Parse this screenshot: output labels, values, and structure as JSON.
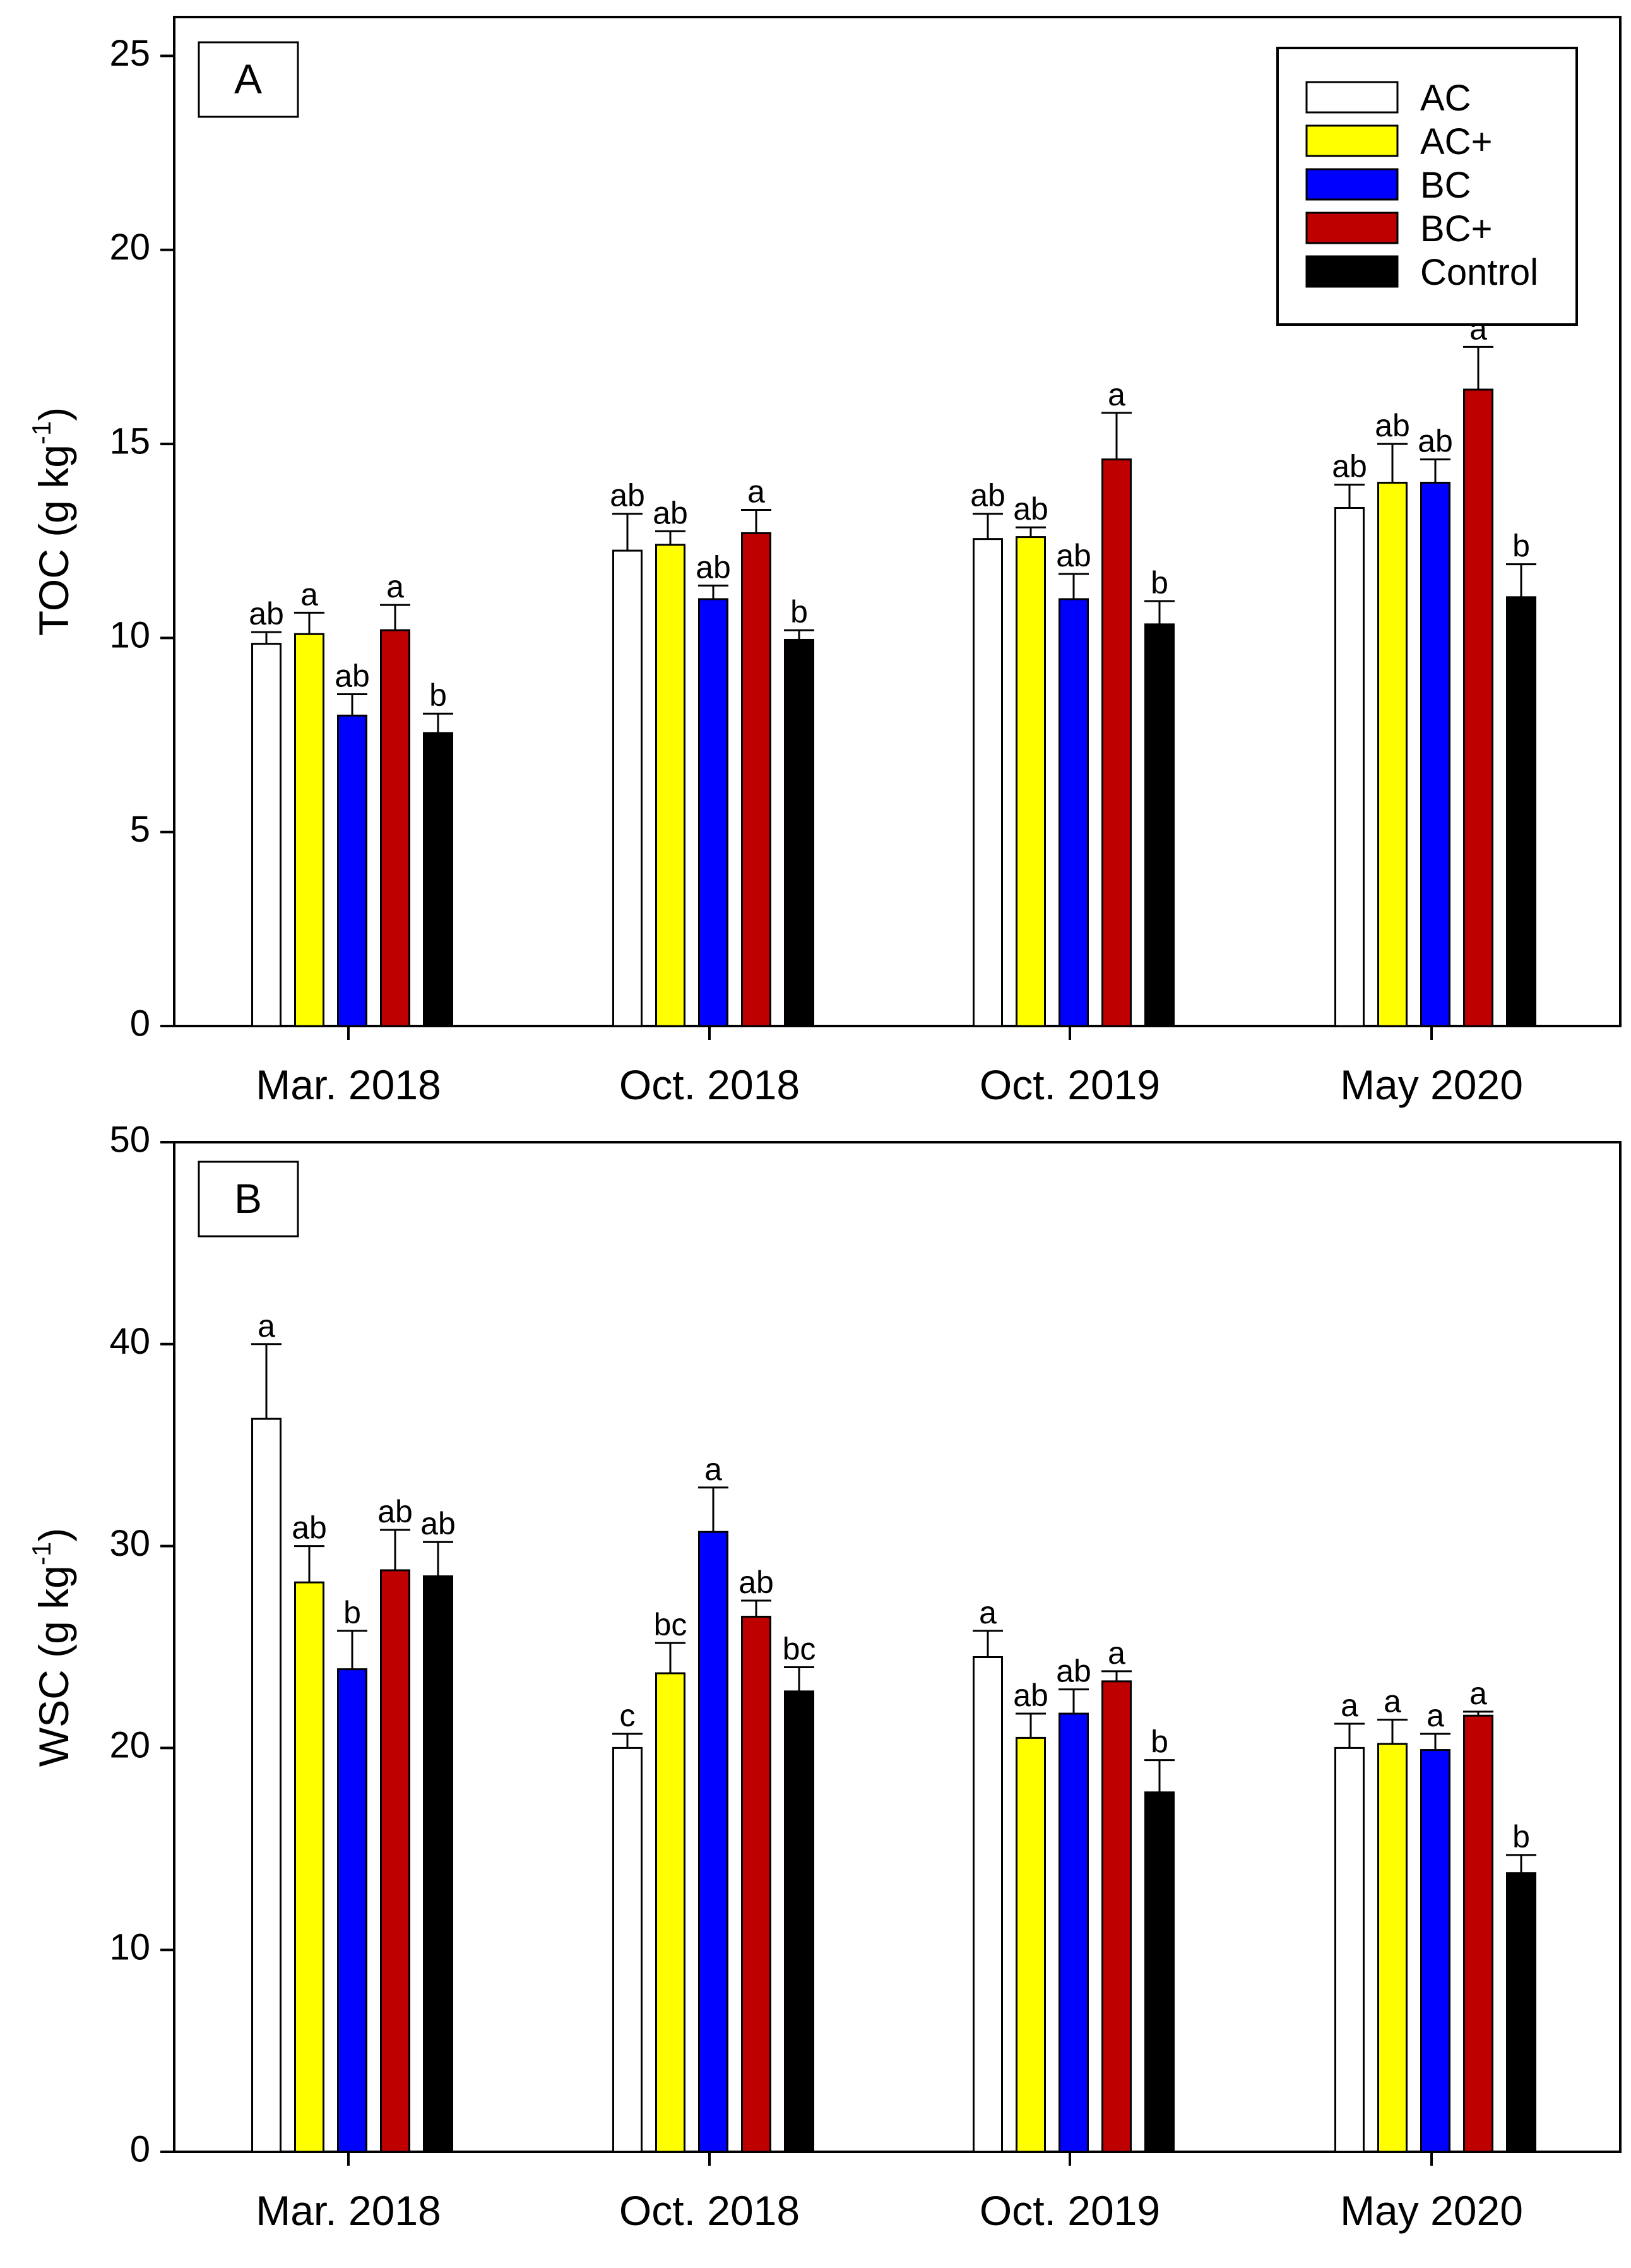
{
  "chart_data": [
    {
      "type": "bar",
      "panel_label": "A",
      "ylabel": "TOC (g kg",
      "ylabel_sup": "-1",
      "ylabel_close": ")",
      "ylim": [
        0,
        26
      ],
      "yticks": [
        0,
        5,
        10,
        15,
        20,
        25
      ],
      "categories": [
        "Mar. 2018",
        "Oct. 2018",
        "Oct. 2019",
        "May 2020"
      ],
      "legend_position": "top-right",
      "series": [
        {
          "name": "AC",
          "color": "#ffffff",
          "values": [
            9.85,
            12.25,
            12.55,
            13.35
          ],
          "errors": [
            0.3,
            0.95,
            0.65,
            0.6
          ],
          "letters": [
            "ab",
            "ab",
            "ab",
            "ab"
          ]
        },
        {
          "name": "AC+",
          "color": "#ffff00",
          "values": [
            10.1,
            12.4,
            12.6,
            14.0
          ],
          "errors": [
            0.55,
            0.35,
            0.25,
            1.0
          ],
          "letters": [
            "a",
            "ab",
            "ab",
            "ab"
          ]
        },
        {
          "name": "BC",
          "color": "#0000ff",
          "values": [
            8.0,
            11.0,
            11.0,
            14.0
          ],
          "errors": [
            0.55,
            0.35,
            0.65,
            0.6
          ],
          "letters": [
            "ab",
            "ab",
            "ab",
            "ab"
          ]
        },
        {
          "name": "BC+",
          "color": "#bf0000",
          "values": [
            10.2,
            12.7,
            14.6,
            16.4
          ],
          "errors": [
            0.65,
            0.6,
            1.2,
            1.1
          ],
          "letters": [
            "a",
            "a",
            "a",
            "a"
          ]
        },
        {
          "name": "Control",
          "color": "#000000",
          "values": [
            7.55,
            9.95,
            10.35,
            11.05
          ],
          "errors": [
            0.5,
            0.25,
            0.6,
            0.85
          ],
          "letters": [
            "b",
            "b",
            "b",
            "b"
          ]
        }
      ]
    },
    {
      "type": "bar",
      "panel_label": "B",
      "ylabel": "WSC (g kg",
      "ylabel_sup": "-1",
      "ylabel_close": ")",
      "ylim": [
        0,
        50
      ],
      "yticks": [
        0,
        10,
        20,
        30,
        40,
        50
      ],
      "categories": [
        "Mar. 2018",
        "Oct. 2018",
        "Oct. 2019",
        "May 2020"
      ],
      "series": [
        {
          "name": "AC",
          "color": "#ffffff",
          "values": [
            36.3,
            20.0,
            24.5,
            20.0
          ],
          "errors": [
            3.7,
            0.7,
            1.3,
            1.2
          ],
          "letters": [
            "a",
            "c",
            "a",
            "a"
          ]
        },
        {
          "name": "AC+",
          "color": "#ffff00",
          "values": [
            28.2,
            23.7,
            20.5,
            20.2
          ],
          "errors": [
            1.8,
            1.5,
            1.2,
            1.2
          ],
          "letters": [
            "ab",
            "bc",
            "ab",
            "a"
          ]
        },
        {
          "name": "BC",
          "color": "#0000ff",
          "values": [
            23.9,
            30.7,
            21.7,
            19.9
          ],
          "errors": [
            1.9,
            2.2,
            1.2,
            0.8
          ],
          "letters": [
            "b",
            "a",
            "ab",
            "a"
          ]
        },
        {
          "name": "BC+",
          "color": "#bf0000",
          "values": [
            28.8,
            26.5,
            23.3,
            21.6
          ],
          "errors": [
            2.0,
            0.8,
            0.5,
            0.2
          ],
          "letters": [
            "ab",
            "ab",
            "a",
            "a"
          ]
        },
        {
          "name": "Control",
          "color": "#000000",
          "values": [
            28.5,
            22.8,
            17.8,
            13.8
          ],
          "errors": [
            1.7,
            1.2,
            1.6,
            0.9
          ],
          "letters": [
            "ab",
            "bc",
            "b",
            "b"
          ]
        }
      ]
    }
  ]
}
